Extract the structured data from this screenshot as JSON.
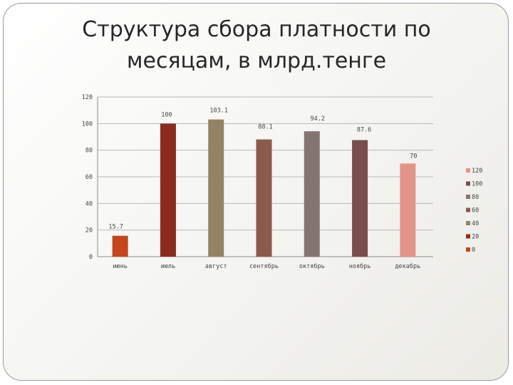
{
  "slide": {
    "title": "Структура сбора платности по месяцам, в млрд.тенге"
  },
  "chart_data": {
    "type": "bar",
    "title": "Структура сбора платности по месяцам, в млрд.тенге",
    "xlabel": "",
    "ylabel": "",
    "ylim": [
      0,
      120
    ],
    "yticks": [
      0,
      20,
      40,
      60,
      80,
      100,
      120
    ],
    "grid": true,
    "categories": [
      "июнь",
      "июль",
      "август",
      "сентябрь",
      "октябрь",
      "ноябрь",
      "декабрь"
    ],
    "values": [
      15.7,
      100,
      103.1,
      88.1,
      94.2,
      87.6,
      70
    ],
    "data_labels": [
      "15.7",
      "100",
      "103.1",
      "88.1",
      "94.2",
      "87.6",
      "70"
    ],
    "bar_colors": [
      "#c5451c",
      "#8b2b1f",
      "#948264",
      "#8a5a4a",
      "#857372",
      "#7a4e4b",
      "#e2938a"
    ],
    "legend_position": "right",
    "legend": [
      {
        "label": "120",
        "color": "#e2938a"
      },
      {
        "label": "100",
        "color": "#7a4e4b"
      },
      {
        "label": "80",
        "color": "#857372"
      },
      {
        "label": "60",
        "color": "#8a5a4a"
      },
      {
        "label": "40",
        "color": "#948264"
      },
      {
        "label": "20",
        "color": "#8b2b1f"
      },
      {
        "label": "0",
        "color": "#c5451c"
      }
    ]
  }
}
